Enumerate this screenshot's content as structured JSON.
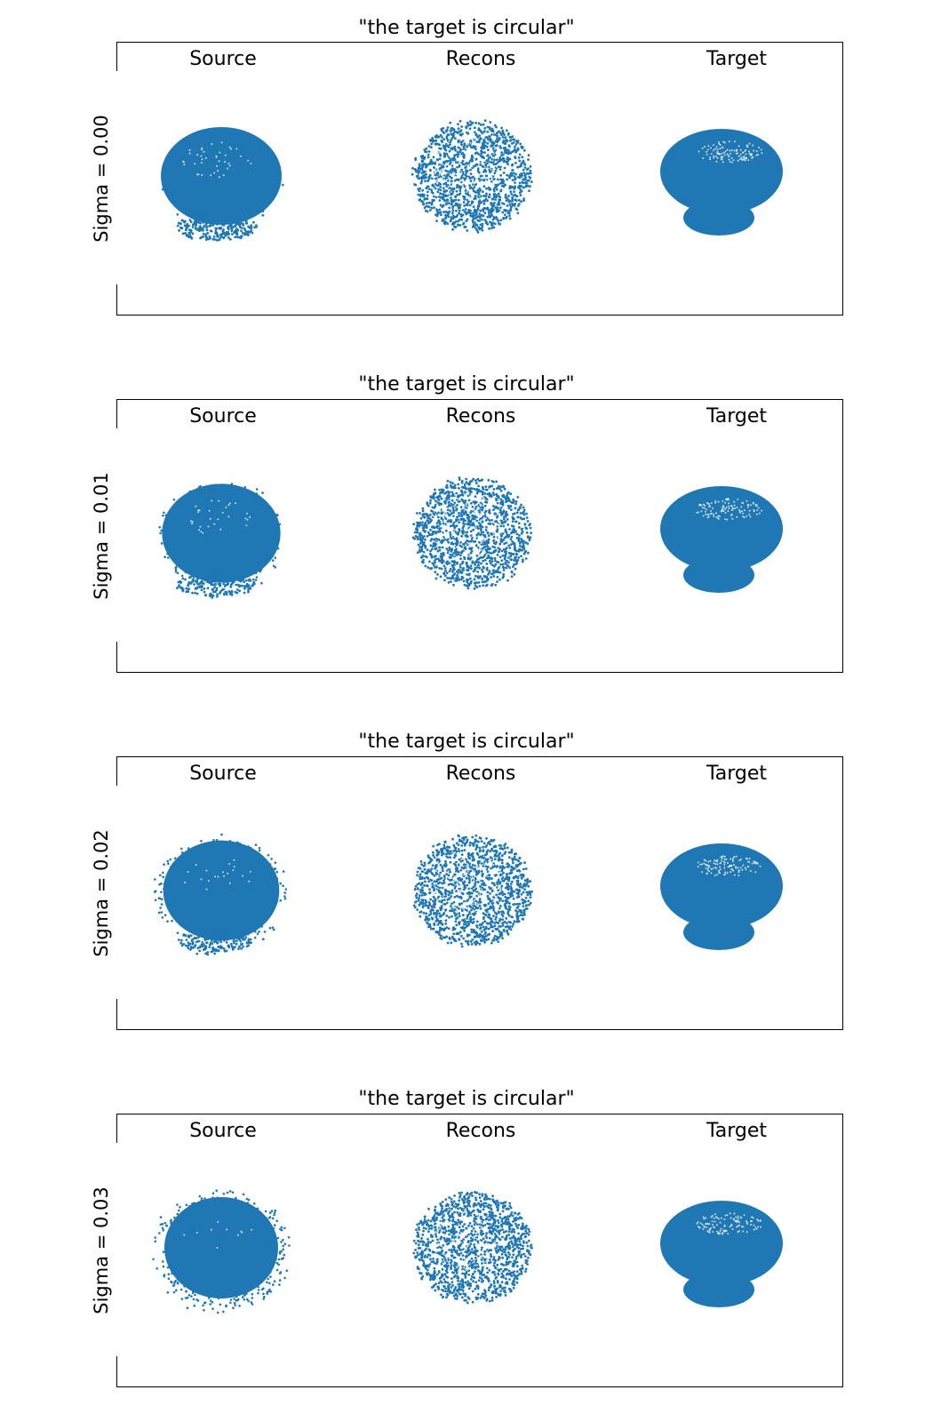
{
  "colors": {
    "points": "#1f77b4",
    "axes": "#000000"
  },
  "chart_data": [
    {
      "type": "scatter",
      "title": "\"the target is circular\"",
      "ylabel": "Sigma = 0.00",
      "sigma": 0.0,
      "columns": [
        "Source",
        "Recons",
        "Target"
      ],
      "grid": false
    },
    {
      "type": "scatter",
      "title": "\"the target is circular\"",
      "ylabel": "Sigma = 0.01",
      "sigma": 0.01,
      "columns": [
        "Source",
        "Recons",
        "Target"
      ],
      "grid": false
    },
    {
      "type": "scatter",
      "title": "\"the target is circular\"",
      "ylabel": "Sigma = 0.02",
      "sigma": 0.02,
      "columns": [
        "Source",
        "Recons",
        "Target"
      ],
      "grid": false
    },
    {
      "type": "scatter",
      "title": "\"the target is circular\"",
      "ylabel": "Sigma = 0.03",
      "sigma": 0.03,
      "columns": [
        "Source",
        "Recons",
        "Target"
      ],
      "grid": false
    }
  ]
}
